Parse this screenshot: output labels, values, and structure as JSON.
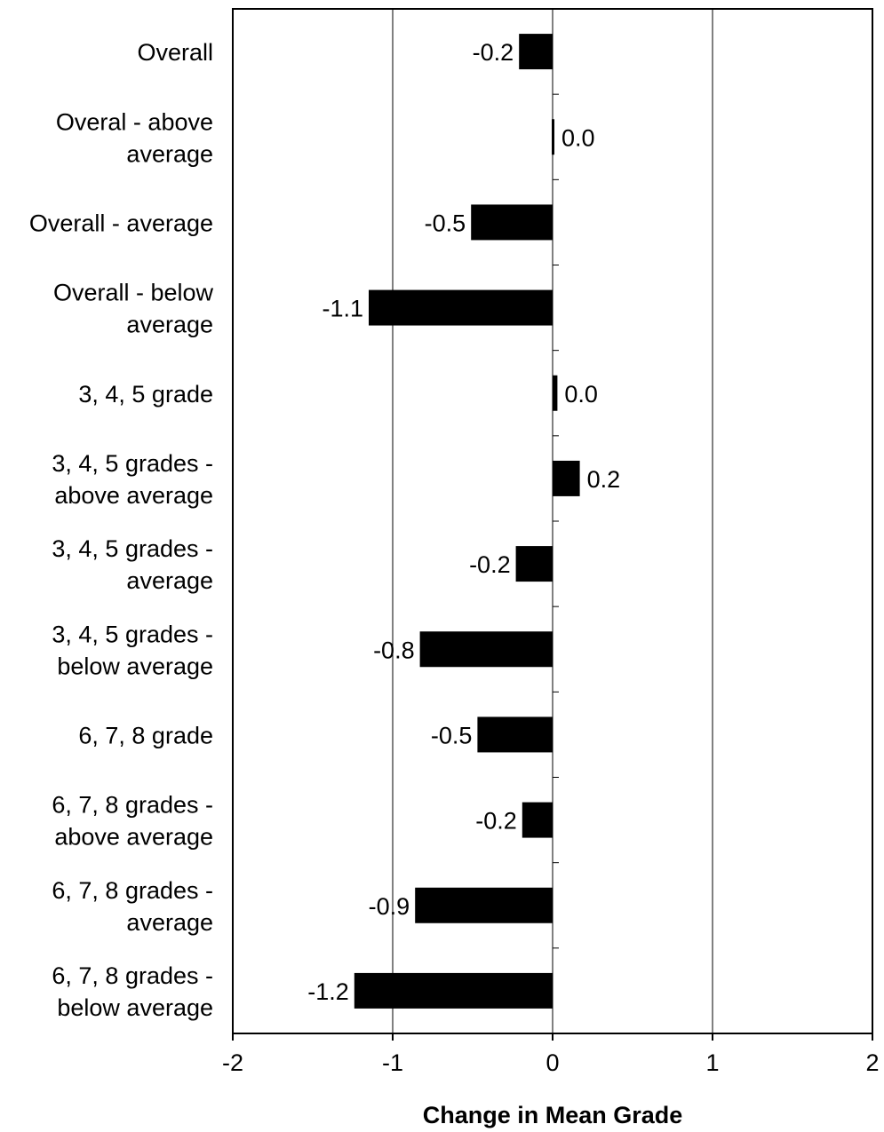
{
  "chart_data": {
    "type": "bar",
    "orientation": "horizontal",
    "categories": [
      "Overall",
      "Overal - above average",
      "Overall - average",
      "Overall - below average",
      "3, 4, 5 grade",
      "3, 4, 5 grades - above average",
      "3, 4, 5 grades - average",
      "3, 4, 5 grades - below average",
      "6, 7, 8 grade",
      "6, 7, 8 grades - above average",
      "6, 7, 8 grades - average",
      "6, 7, 8 grades - below average"
    ],
    "category_lines": [
      [
        "Overall"
      ],
      [
        "Overal - above",
        "average"
      ],
      [
        "Overall - average"
      ],
      [
        "Overall - below",
        "average"
      ],
      [
        "3, 4, 5 grade"
      ],
      [
        "3, 4, 5 grades -",
        "above average"
      ],
      [
        "3, 4, 5 grades -",
        "average"
      ],
      [
        "3, 4, 5 grades -",
        "below average"
      ],
      [
        "6, 7, 8 grade"
      ],
      [
        "6, 7, 8 grades -",
        "above average"
      ],
      [
        "6, 7, 8 grades -",
        "average"
      ],
      [
        "6, 7, 8 grades -",
        "below average"
      ]
    ],
    "values": [
      -0.21,
      0.01,
      -0.51,
      -1.15,
      0.03,
      0.17,
      -0.23,
      -0.83,
      -0.47,
      -0.19,
      -0.86,
      -1.24
    ],
    "data_labels": [
      "-0.2",
      "0.0",
      "-0.5",
      "-1.1",
      "0.0",
      "0.2",
      "-0.2",
      "-0.8",
      "-0.5",
      "-0.2",
      "-0.9",
      "-1.2"
    ],
    "xlabel": "Change in Mean Grade",
    "xlim": [
      -2,
      2
    ],
    "xticks": [
      -2,
      -1,
      0,
      1,
      2
    ],
    "xtick_labels": [
      "-2",
      "-1",
      "0",
      "1",
      "2"
    ],
    "grid": "vertical major gridlines",
    "legend": "none",
    "bar_color": "#000000"
  }
}
